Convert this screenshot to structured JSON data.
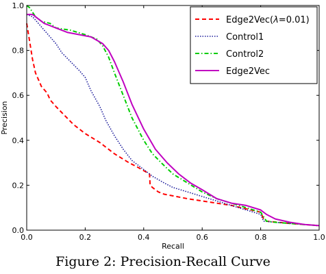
{
  "caption": "Figure 2: Precision-Recall Curve",
  "chart_data": {
    "type": "line",
    "xlabel": "Recall",
    "ylabel": "Precision",
    "xlim": [
      0,
      1
    ],
    "ylim": [
      0,
      1
    ],
    "xticks": [
      "0.0",
      "0.2",
      "0.4",
      "0.6",
      "0.8",
      "1.0"
    ],
    "yticks": [
      "0.0",
      "0.2",
      "0.4",
      "0.6",
      "0.8",
      "1.0"
    ],
    "grid": false,
    "legend_position": "top-right",
    "series": [
      {
        "name": "Edge2Vec(λ=0.01)",
        "legend_parts": [
          "Edge2Vec(",
          "λ",
          "=0.01)"
        ],
        "color": "#ff0000",
        "style": "dashed",
        "points": [
          [
            0,
            0.92
          ],
          [
            0.01,
            0.84
          ],
          [
            0.02,
            0.76
          ],
          [
            0.03,
            0.7
          ],
          [
            0.04,
            0.67
          ],
          [
            0.05,
            0.64
          ],
          [
            0.07,
            0.61
          ],
          [
            0.08,
            0.58
          ],
          [
            0.1,
            0.55
          ],
          [
            0.13,
            0.51
          ],
          [
            0.16,
            0.47
          ],
          [
            0.2,
            0.43
          ],
          [
            0.25,
            0.39
          ],
          [
            0.3,
            0.34
          ],
          [
            0.35,
            0.3
          ],
          [
            0.38,
            0.28
          ],
          [
            0.42,
            0.25
          ],
          [
            0.422,
            0.2
          ],
          [
            0.43,
            0.19
          ],
          [
            0.44,
            0.18
          ],
          [
            0.45,
            0.17
          ],
          [
            0.47,
            0.16
          ],
          [
            0.55,
            0.14
          ],
          [
            0.65,
            0.12
          ],
          [
            0.7,
            0.11
          ],
          [
            0.8,
            0.08
          ],
          [
            0.81,
            0.05
          ],
          [
            0.82,
            0.04
          ],
          [
            0.9,
            0.03
          ],
          [
            1.0,
            0.02
          ]
        ]
      },
      {
        "name": "Control1",
        "color": "#1a1a9a",
        "style": "dotted",
        "points": [
          [
            0,
            0.96
          ],
          [
            0.02,
            0.95
          ],
          [
            0.04,
            0.92
          ],
          [
            0.06,
            0.89
          ],
          [
            0.08,
            0.86
          ],
          [
            0.1,
            0.83
          ],
          [
            0.12,
            0.79
          ],
          [
            0.15,
            0.75
          ],
          [
            0.18,
            0.71
          ],
          [
            0.2,
            0.68
          ],
          [
            0.22,
            0.62
          ],
          [
            0.25,
            0.55
          ],
          [
            0.27,
            0.49
          ],
          [
            0.3,
            0.42
          ],
          [
            0.33,
            0.36
          ],
          [
            0.36,
            0.31
          ],
          [
            0.4,
            0.27
          ],
          [
            0.43,
            0.24
          ],
          [
            0.47,
            0.21
          ],
          [
            0.5,
            0.19
          ],
          [
            0.55,
            0.17
          ],
          [
            0.6,
            0.15
          ],
          [
            0.65,
            0.13
          ],
          [
            0.7,
            0.11
          ],
          [
            0.75,
            0.09
          ],
          [
            0.8,
            0.07
          ],
          [
            0.81,
            0.04
          ],
          [
            0.85,
            0.035
          ],
          [
            0.9,
            0.03
          ],
          [
            1.0,
            0.02
          ]
        ]
      },
      {
        "name": "Control2",
        "color": "#00cc00",
        "style": "dashdot",
        "points": [
          [
            0,
            1.0
          ],
          [
            0.01,
            0.99
          ],
          [
            0.02,
            0.97
          ],
          [
            0.03,
            0.95
          ],
          [
            0.05,
            0.93
          ],
          [
            0.08,
            0.92
          ],
          [
            0.1,
            0.9
          ],
          [
            0.15,
            0.89
          ],
          [
            0.2,
            0.87
          ],
          [
            0.24,
            0.85
          ],
          [
            0.26,
            0.82
          ],
          [
            0.28,
            0.77
          ],
          [
            0.3,
            0.7
          ],
          [
            0.33,
            0.6
          ],
          [
            0.36,
            0.5
          ],
          [
            0.4,
            0.4
          ],
          [
            0.43,
            0.34
          ],
          [
            0.46,
            0.3
          ],
          [
            0.5,
            0.25
          ],
          [
            0.55,
            0.21
          ],
          [
            0.6,
            0.17
          ],
          [
            0.65,
            0.14
          ],
          [
            0.7,
            0.12
          ],
          [
            0.75,
            0.1
          ],
          [
            0.8,
            0.08
          ],
          [
            0.82,
            0.04
          ],
          [
            0.85,
            0.035
          ],
          [
            0.9,
            0.03
          ],
          [
            1.0,
            0.02
          ]
        ]
      },
      {
        "name": "Edge2Vec",
        "color": "#c000c0",
        "style": "solid",
        "points": [
          [
            0,
            0.96
          ],
          [
            0.02,
            0.96
          ],
          [
            0.04,
            0.94
          ],
          [
            0.06,
            0.92
          ],
          [
            0.08,
            0.91
          ],
          [
            0.1,
            0.9
          ],
          [
            0.14,
            0.88
          ],
          [
            0.18,
            0.87
          ],
          [
            0.22,
            0.86
          ],
          [
            0.26,
            0.83
          ],
          [
            0.28,
            0.8
          ],
          [
            0.3,
            0.75
          ],
          [
            0.33,
            0.66
          ],
          [
            0.36,
            0.56
          ],
          [
            0.4,
            0.45
          ],
          [
            0.44,
            0.36
          ],
          [
            0.48,
            0.3
          ],
          [
            0.52,
            0.25
          ],
          [
            0.56,
            0.21
          ],
          [
            0.6,
            0.18
          ],
          [
            0.65,
            0.14
          ],
          [
            0.7,
            0.12
          ],
          [
            0.75,
            0.11
          ],
          [
            0.8,
            0.09
          ],
          [
            0.82,
            0.07
          ],
          [
            0.85,
            0.05
          ],
          [
            0.9,
            0.035
          ],
          [
            0.95,
            0.025
          ],
          [
            1.0,
            0.02
          ]
        ]
      }
    ]
  }
}
